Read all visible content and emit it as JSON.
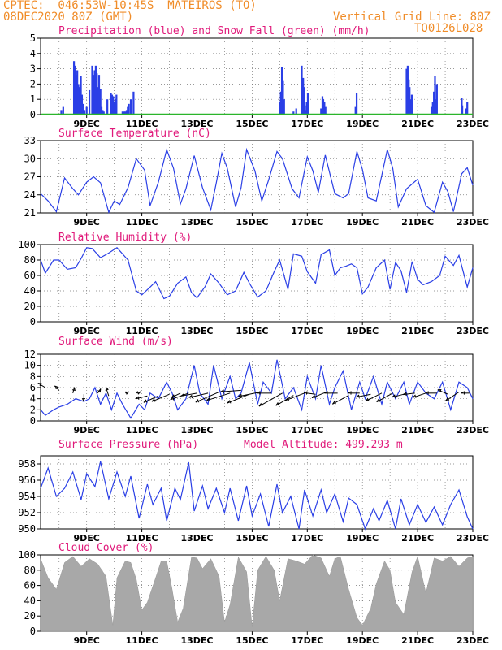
{
  "header": {
    "line1": "CPTEC:  046:53W-10:45S  MATEIROS (TO)",
    "line2": "08DEC2020 80Z (GMT)",
    "grid_note": "Vertical Grid Line: 80Z",
    "code": "TQ0126L028"
  },
  "colors": {
    "header": "#f08c28",
    "title": "#e0197a",
    "line": "#2a3fe6",
    "wind_arrow": "#000000",
    "snow": "#2bb52b",
    "cloud": "#a8a8a8"
  },
  "x_ticks": [
    "9DEC",
    "11DEC",
    "13DEC",
    "15DEC",
    "17DEC",
    "19DEC",
    "21DEC",
    "23DEC"
  ],
  "chart_data": [
    {
      "id": "precip",
      "type": "bar",
      "title": "Precipitation (blue) and Snow Fall (green) (mm/h)",
      "ylim": [
        0,
        5
      ],
      "yticks": [
        "0",
        "1",
        "2",
        "3",
        "4",
        "5"
      ],
      "series": [
        {
          "name": "Precipitation",
          "x": [
            8.08,
            8.15,
            8.54,
            8.58,
            8.62,
            8.66,
            8.7,
            8.75,
            8.79,
            8.83,
            8.87,
            8.92,
            9.0,
            9.1,
            9.2,
            9.25,
            9.29,
            9.33,
            9.37,
            9.41,
            9.45,
            9.5,
            9.54,
            9.58,
            9.62,
            9.75,
            9.88,
            9.92,
            9.96,
            10.0,
            10.04,
            10.08,
            10.3,
            10.35,
            10.4,
            10.45,
            10.49,
            10.53,
            10.6,
            10.7,
            16.0,
            16.04,
            16.08,
            16.12,
            16.16,
            16.5,
            16.6,
            16.8,
            16.85,
            16.88,
            16.91,
            16.95,
            16.98,
            17.02,
            17.5,
            17.55,
            17.58,
            17.62,
            17.66,
            18.75,
            18.79,
            20.6,
            20.64,
            20.68,
            20.71,
            20.75,
            20.79,
            21.5,
            21.55,
            21.59,
            21.63,
            21.66,
            21.7,
            22.6,
            22.62,
            22.75,
            22.8
          ],
          "values": [
            0.3,
            0.5,
            3.5,
            3.2,
            2.6,
            2.9,
            2.0,
            1.8,
            2.5,
            1.3,
            0.7,
            0.3,
            0.5,
            1.6,
            3.2,
            2.6,
            2.9,
            3.2,
            2.7,
            1.8,
            2.6,
            1.7,
            0.5,
            0.3,
            0.2,
            1.0,
            1.4,
            1.3,
            1.2,
            0.8,
            1.0,
            1.3,
            0.2,
            0.2,
            0.2,
            0.3,
            0.5,
            0.7,
            1.0,
            1.5,
            0.8,
            1.5,
            3.1,
            2.2,
            1.0,
            0.2,
            0.4,
            3.2,
            2.4,
            1.8,
            0.6,
            0.3,
            0.8,
            1.4,
            0.4,
            1.2,
            1.0,
            0.8,
            0.5,
            0.5,
            1.4,
            3.0,
            3.2,
            2.3,
            1.8,
            1.0,
            1.3,
            0.5,
            0.8,
            1.5,
            2.5,
            1.0,
            2.0,
            1.1,
            0.6,
            0.4,
            0.8
          ]
        },
        {
          "name": "Snow Fall",
          "x": [],
          "values": []
        }
      ]
    },
    {
      "id": "temp",
      "type": "line",
      "title": "Surface Temperature (nC)",
      "ylim": [
        21,
        33
      ],
      "yticks": [
        "21",
        "24",
        "27",
        "30",
        "33"
      ],
      "x": [
        7.33,
        7.6,
        7.9,
        8.2,
        8.5,
        8.7,
        9.0,
        9.25,
        9.5,
        9.8,
        10.0,
        10.2,
        10.5,
        10.8,
        11.1,
        11.3,
        11.6,
        11.9,
        12.15,
        12.4,
        12.6,
        12.9,
        13.2,
        13.5,
        13.7,
        13.9,
        14.1,
        14.4,
        14.6,
        14.8,
        15.1,
        15.35,
        15.6,
        15.9,
        16.1,
        16.45,
        16.7,
        17.0,
        17.2,
        17.4,
        17.65,
        18.0,
        18.3,
        18.5,
        18.8,
        19.0,
        19.2,
        19.5,
        19.9,
        20.1,
        20.3,
        20.6,
        21.0,
        21.3,
        21.6,
        21.9,
        22.1,
        22.3,
        22.6,
        22.8,
        23.0
      ],
      "values": [
        24.2,
        23.0,
        21.2,
        26.8,
        25.0,
        24.0,
        26.1,
        27.0,
        26.0,
        21.1,
        23.0,
        22.4,
        25.2,
        30.0,
        28.1,
        22.2,
        26.1,
        31.5,
        28.4,
        22.5,
        25.0,
        30.5,
        25.2,
        21.5,
        26.0,
        30.9,
        28.4,
        22.0,
        25.2,
        31.5,
        28.0,
        23.0,
        26.5,
        31.2,
        30.0,
        25.0,
        23.5,
        30.3,
        28.0,
        24.4,
        30.6,
        24.2,
        23.5,
        24.2,
        31.2,
        28.2,
        23.5,
        23.0,
        31.5,
        28.4,
        22.0,
        25.0,
        26.6,
        22.2,
        21.1,
        26.1,
        24.5,
        21.2,
        27.5,
        28.5,
        25.6
      ]
    },
    {
      "id": "rh",
      "type": "line",
      "title": "Relative Humidity (%)",
      "ylim": [
        0,
        100
      ],
      "yticks": [
        "0",
        "20",
        "40",
        "60",
        "80",
        "100"
      ],
      "x": [
        7.33,
        7.5,
        7.8,
        8.0,
        8.3,
        8.6,
        8.8,
        9.0,
        9.2,
        9.5,
        9.8,
        10.1,
        10.5,
        10.8,
        11.0,
        11.3,
        11.5,
        11.8,
        12.0,
        12.3,
        12.6,
        12.8,
        13.0,
        13.3,
        13.5,
        13.8,
        14.1,
        14.4,
        14.7,
        14.9,
        15.2,
        15.5,
        15.8,
        16.0,
        16.3,
        16.5,
        16.8,
        17.0,
        17.3,
        17.5,
        17.8,
        18.0,
        18.2,
        18.4,
        18.6,
        18.8,
        19.0,
        19.2,
        19.5,
        19.8,
        20.0,
        20.2,
        20.4,
        20.6,
        20.8,
        21.0,
        21.2,
        21.5,
        21.8,
        22.0,
        22.3,
        22.5,
        22.8,
        23.0
      ],
      "values": [
        80,
        63,
        80,
        80,
        68,
        70,
        82,
        96,
        95,
        83,
        89,
        96,
        80,
        40,
        35,
        45,
        52,
        30,
        33,
        50,
        58,
        38,
        31,
        46,
        62,
        50,
        35,
        40,
        64,
        50,
        32,
        40,
        65,
        80,
        42,
        88,
        85,
        65,
        50,
        87,
        93,
        60,
        70,
        72,
        75,
        70,
        36,
        45,
        70,
        80,
        42,
        77,
        66,
        38,
        78,
        55,
        48,
        52,
        60,
        85,
        73,
        86,
        45,
        70
      ]
    },
    {
      "id": "wind",
      "type": "line",
      "title": "Surface Wind (m/s)",
      "ylim": [
        0,
        12
      ],
      "yticks": [
        "0",
        "2",
        "4",
        "6",
        "8",
        "10",
        "12"
      ],
      "x": [
        7.33,
        7.5,
        7.8,
        8.0,
        8.3,
        8.6,
        8.9,
        9.1,
        9.3,
        9.5,
        9.7,
        9.9,
        10.1,
        10.3,
        10.6,
        10.9,
        11.1,
        11.3,
        11.6,
        11.9,
        12.1,
        12.3,
        12.6,
        12.9,
        13.1,
        13.4,
        13.6,
        13.9,
        14.2,
        14.4,
        14.6,
        14.9,
        15.2,
        15.4,
        15.7,
        15.9,
        16.2,
        16.5,
        16.8,
        17.0,
        17.3,
        17.5,
        17.8,
        18.0,
        18.3,
        18.6,
        18.9,
        19.1,
        19.4,
        19.7,
        19.9,
        20.2,
        20.5,
        20.7,
        21.0,
        21.3,
        21.6,
        21.9,
        22.2,
        22.5,
        22.8,
        23.0
      ],
      "values": [
        2.0,
        1.0,
        2.0,
        2.5,
        3.0,
        4.0,
        3.5,
        4.0,
        6.0,
        3.0,
        5.0,
        2.0,
        5.0,
        3.0,
        0.5,
        3.0,
        2.0,
        5.0,
        4.0,
        7.0,
        5.0,
        2.0,
        4.0,
        10.0,
        5.0,
        3.0,
        10.0,
        4.0,
        8.0,
        4.0,
        5.0,
        10.5,
        3.0,
        7.0,
        5.0,
        11.0,
        4.0,
        6.0,
        2.0,
        8.0,
        4.0,
        10.0,
        3.0,
        6.0,
        9.0,
        2.0,
        7.0,
        4.0,
        8.0,
        3.0,
        7.0,
        4.0,
        7.0,
        3.0,
        7.0,
        5.0,
        4.0,
        7.0,
        2.0,
        7.0,
        6.0,
        4.0
      ]
    },
    {
      "id": "wind_vectors",
      "type": "scatter",
      "x": [
        7.5,
        8.0,
        8.5,
        8.9,
        9.4,
        9.8,
        10.4,
        10.8,
        11.2,
        11.6,
        12.0,
        12.4,
        12.7,
        13.0,
        13.4,
        13.8,
        14.2,
        14.6,
        14.9,
        15.3,
        15.7,
        16.1,
        16.5,
        16.9,
        17.3,
        17.7,
        18.1,
        18.5,
        18.9,
        19.3,
        19.7,
        20.1,
        20.5,
        20.9,
        21.3,
        21.7,
        22.1,
        22.5,
        22.9
      ],
      "values": [
        6.0,
        5.5,
        5.0,
        4.8,
        5.0,
        4.5,
        5.0,
        5.0,
        4.5,
        4.5,
        4.8,
        5.0,
        5.0,
        5.0,
        5.0,
        5.2,
        5.0,
        5.5,
        4.8,
        5.2,
        5.0,
        5.0,
        4.6,
        5.0,
        4.8,
        5.2,
        5.0,
        4.6,
        5.0,
        4.8,
        5.0,
        5.0,
        4.8,
        5.0,
        5.0,
        5.0,
        4.8,
        5.2,
        5.0
      ],
      "u": [
        -1,
        -0.6,
        0.2,
        0,
        0.4,
        -0.4,
        0.5,
        0.6,
        -1.6,
        -2,
        -2.4,
        -1.2,
        -2.5,
        -2.2,
        -2.6,
        -3.2,
        -3.2,
        -2.8,
        -3,
        -3,
        -2,
        -3.2,
        -2.4,
        -2.6,
        -1.6,
        -2,
        -1.8,
        -2.2,
        -1.6,
        -2,
        -2.2,
        -2.2,
        -1.6,
        -1.6,
        -1.8,
        -1.6,
        -1.4,
        -1.8,
        -1.2
      ],
      "v": [
        0.6,
        0.6,
        0.8,
        -1,
        0.6,
        1.2,
        0.2,
        0.2,
        -0.4,
        -0.9,
        -1,
        -0.6,
        -0.9,
        -0.4,
        -0.6,
        -1.4,
        -1,
        -0.2,
        -1.2,
        -0.6,
        0,
        -1.8,
        -1.4,
        -1,
        0.2,
        -0.8,
        0,
        -1.2,
        0,
        -0.4,
        -1.1,
        -1.2,
        -0.4,
        -0.2,
        -0.6,
        0,
        0.6,
        -1.2,
        0
      ]
    },
    {
      "id": "pressure",
      "type": "line",
      "title": "Surface Pressure (hPa)",
      "subtitle": "Model Altitude: 499.293 m",
      "ylim": [
        950,
        959
      ],
      "yticks": [
        "950",
        "952",
        "954",
        "956",
        "958"
      ],
      "x": [
        7.33,
        7.6,
        7.9,
        8.2,
        8.5,
        8.8,
        9.0,
        9.3,
        9.5,
        9.8,
        10.1,
        10.4,
        10.6,
        10.9,
        11.2,
        11.4,
        11.7,
        11.9,
        12.2,
        12.4,
        12.7,
        12.9,
        13.2,
        13.4,
        13.7,
        14.0,
        14.2,
        14.5,
        14.8,
        15.0,
        15.3,
        15.6,
        15.9,
        16.1,
        16.4,
        16.7,
        16.9,
        17.2,
        17.5,
        17.7,
        18.0,
        18.3,
        18.5,
        18.8,
        19.1,
        19.4,
        19.6,
        19.9,
        20.2,
        20.4,
        20.7,
        21.0,
        21.3,
        21.6,
        21.9,
        22.2,
        22.5,
        22.8,
        23.0
      ],
      "values": [
        955.0,
        957.5,
        954.0,
        955.0,
        957.0,
        953.6,
        956.8,
        955.2,
        958.3,
        953.7,
        957.0,
        954.0,
        956.5,
        951.3,
        955.5,
        953.0,
        955.0,
        951.0,
        955.0,
        953.6,
        958.2,
        952.2,
        955.3,
        952.5,
        955.0,
        952.0,
        955.0,
        951.0,
        955.3,
        951.6,
        954.3,
        950.3,
        955.5,
        952.0,
        954.0,
        950.0,
        954.8,
        951.6,
        954.8,
        952.0,
        954.3,
        950.9,
        953.8,
        953.0,
        950.0,
        952.5,
        951.0,
        953.5,
        950.0,
        953.7,
        950.5,
        953.0,
        950.8,
        952.7,
        950.5,
        953.0,
        954.8,
        951.5,
        950.0
      ]
    },
    {
      "id": "cloud",
      "type": "area",
      "title": "Cloud Cover (%)",
      "ylim": [
        0,
        100
      ],
      "yticks": [
        "0",
        "20",
        "40",
        "60",
        "80",
        "100"
      ],
      "x": [
        7.33,
        7.6,
        7.9,
        8.2,
        8.5,
        8.8,
        9.1,
        9.4,
        9.7,
        9.95,
        10.1,
        10.4,
        10.6,
        10.8,
        11.0,
        11.2,
        11.5,
        11.7,
        11.9,
        12.1,
        12.3,
        12.5,
        12.8,
        13.0,
        13.2,
        13.5,
        13.8,
        14.0,
        14.2,
        14.5,
        14.8,
        15.0,
        15.2,
        15.5,
        15.8,
        16.0,
        16.3,
        16.6,
        16.9,
        17.2,
        17.5,
        17.8,
        18.0,
        18.2,
        18.5,
        18.8,
        19.0,
        19.3,
        19.5,
        19.8,
        20.0,
        20.2,
        20.5,
        20.8,
        21.0,
        21.3,
        21.6,
        21.9,
        22.2,
        22.5,
        22.8,
        23.0
      ],
      "values": [
        95,
        70,
        55,
        90,
        98,
        85,
        95,
        88,
        72,
        8,
        70,
        92,
        90,
        68,
        28,
        38,
        70,
        92,
        92,
        55,
        12,
        30,
        97,
        96,
        82,
        95,
        72,
        12,
        35,
        97,
        78,
        6,
        80,
        98,
        80,
        40,
        95,
        92,
        88,
        100,
        96,
        72,
        95,
        98,
        55,
        18,
        8,
        30,
        62,
        92,
        80,
        38,
        22,
        78,
        98,
        50,
        96,
        92,
        98,
        85,
        96,
        98
      ]
    }
  ]
}
